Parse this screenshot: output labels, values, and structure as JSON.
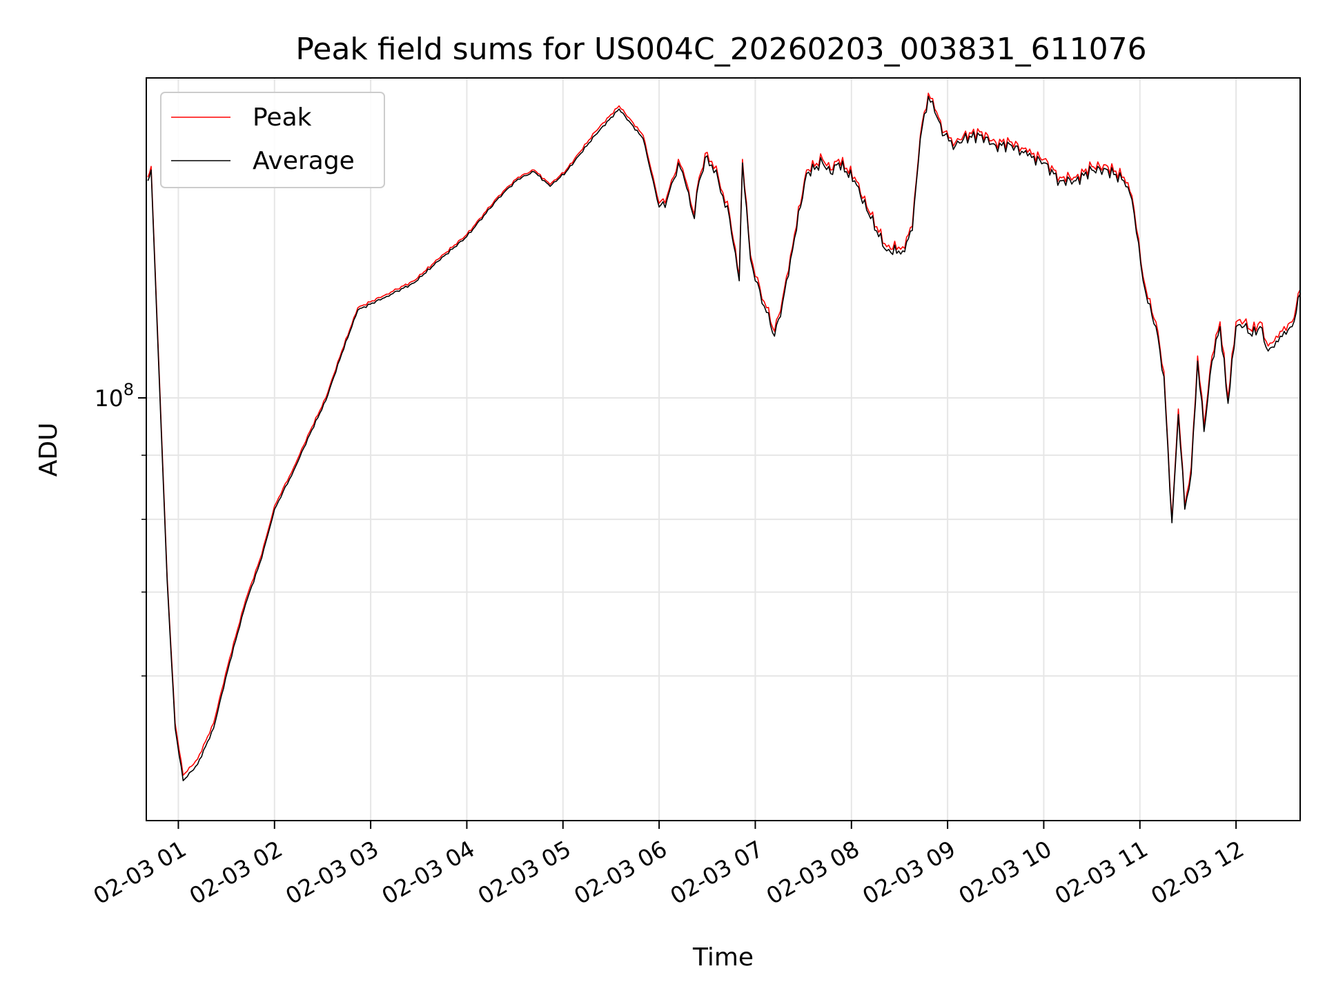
{
  "chart_data": {
    "type": "line",
    "title": "Peak field sums for US004C_20260203_003831_611076",
    "xlabel": "Time",
    "ylabel": "ADU",
    "x_axis_type": "time",
    "xlim": [
      "2026-02-03 00:40",
      "2026-02-03 12:40"
    ],
    "x_ticks": [
      "02-03 01",
      "02-03 02",
      "02-03 03",
      "02-03 04",
      "02-03 05",
      "02-03 06",
      "02-03 07",
      "02-03 08",
      "02-03 09",
      "02-03 10",
      "02-03 11",
      "02-03 12"
    ],
    "y_scale": "log",
    "ylim": [
      46000000,
      180000000
    ],
    "y_major_tick": {
      "value": 100000000,
      "base": "10",
      "exponent": "8"
    },
    "y_minor_ticks": [
      60000000,
      70000000,
      80000000,
      90000000
    ],
    "grid": true,
    "legend_position": "upper-left",
    "series": [
      {
        "name": "Peak",
        "color": "#ff0000",
        "x": [
          "2026-02-03 00:41",
          "2026-02-03 00:43",
          "2026-02-03 00:48",
          "2026-02-03 00:53",
          "2026-02-03 00:58",
          "2026-02-03 01:03",
          "2026-02-03 01:12",
          "2026-02-03 01:22",
          "2026-02-03 01:32",
          "2026-02-03 01:42",
          "2026-02-03 01:52",
          "2026-02-03 02:00",
          "2026-02-03 02:12",
          "2026-02-03 02:22",
          "2026-02-03 02:32",
          "2026-02-03 02:42",
          "2026-02-03 02:52",
          "2026-02-03 03:10",
          "2026-02-03 03:27",
          "2026-02-03 03:42",
          "2026-02-03 04:00",
          "2026-02-03 04:20",
          "2026-02-03 04:32",
          "2026-02-03 04:42",
          "2026-02-03 04:52",
          "2026-02-03 05:02",
          "2026-02-03 05:20",
          "2026-02-03 05:35",
          "2026-02-03 05:50",
          "2026-02-03 06:00",
          "2026-02-03 06:05",
          "2026-02-03 06:12",
          "2026-02-03 06:16",
          "2026-02-03 06:22",
          "2026-02-03 06:25",
          "2026-02-03 06:30",
          "2026-02-03 06:37",
          "2026-02-03 06:44",
          "2026-02-03 06:50",
          "2026-02-03 06:52",
          "2026-02-03 06:57",
          "2026-02-03 07:00",
          "2026-02-03 07:07",
          "2026-02-03 07:12",
          "2026-02-03 07:17",
          "2026-02-03 07:22",
          "2026-02-03 07:32",
          "2026-02-03 07:42",
          "2026-02-03 07:47",
          "2026-02-03 07:52",
          "2026-02-03 08:02",
          "2026-02-03 08:12",
          "2026-02-03 08:22",
          "2026-02-03 08:32",
          "2026-02-03 08:38",
          "2026-02-03 08:43",
          "2026-02-03 08:48",
          "2026-02-03 08:52",
          "2026-02-03 08:58",
          "2026-02-03 09:05",
          "2026-02-03 09:10",
          "2026-02-03 09:20",
          "2026-02-03 09:30",
          "2026-02-03 09:40",
          "2026-02-03 09:50",
          "2026-02-03 10:00",
          "2026-02-03 10:10",
          "2026-02-03 10:20",
          "2026-02-03 10:30",
          "2026-02-03 10:40",
          "2026-02-03 10:50",
          "2026-02-03 10:55",
          "2026-02-03 11:02",
          "2026-02-03 11:05",
          "2026-02-03 11:10",
          "2026-02-03 11:15",
          "2026-02-03 11:20",
          "2026-02-03 11:24",
          "2026-02-03 11:28",
          "2026-02-03 11:32",
          "2026-02-03 11:36",
          "2026-02-03 11:40",
          "2026-02-03 11:45",
          "2026-02-03 11:50",
          "2026-02-03 11:55",
          "2026-02-03 12:00",
          "2026-02-03 12:05",
          "2026-02-03 12:10",
          "2026-02-03 12:15",
          "2026-02-03 12:20",
          "2026-02-03 12:25",
          "2026-02-03 12:30",
          "2026-02-03 12:35",
          "2026-02-03 12:40"
        ],
        "y": [
          150000000,
          153000000,
          105000000,
          72000000,
          55000000,
          50000000,
          51500000,
          55000000,
          62000000,
          69000000,
          75000000,
          82000000,
          88000000,
          94000000,
          100000000,
          109000000,
          118000000,
          121000000,
          124000000,
          129000000,
          135000000,
          145000000,
          150000000,
          152000000,
          148000000,
          152000000,
          163000000,
          171000000,
          162000000,
          143000000,
          145000000,
          155000000,
          150000000,
          140000000,
          150000000,
          157000000,
          150000000,
          140000000,
          125000000,
          155000000,
          130000000,
          125000000,
          118000000,
          113000000,
          120000000,
          130000000,
          152000000,
          155000000,
          152000000,
          155000000,
          150000000,
          140000000,
          132000000,
          132000000,
          137000000,
          162000000,
          175000000,
          170000000,
          163000000,
          160000000,
          162000000,
          163000000,
          160000000,
          160000000,
          157000000,
          155000000,
          150000000,
          150000000,
          153000000,
          153000000,
          150000000,
          145000000,
          125000000,
          120000000,
          115000000,
          105000000,
          80000000,
          98000000,
          82000000,
          88000000,
          108000000,
          95000000,
          108000000,
          115000000,
          100000000,
          115000000,
          115000000,
          113000000,
          115000000,
          110000000,
          112000000,
          114000000,
          115000000,
          122000000
        ]
      },
      {
        "name": "Average",
        "color": "#000000",
        "x": [
          "2026-02-03 00:41",
          "2026-02-03 00:43",
          "2026-02-03 00:48",
          "2026-02-03 00:53",
          "2026-02-03 00:58",
          "2026-02-03 01:03",
          "2026-02-03 01:12",
          "2026-02-03 01:22",
          "2026-02-03 01:32",
          "2026-02-03 01:42",
          "2026-02-03 01:52",
          "2026-02-03 02:00",
          "2026-02-03 02:12",
          "2026-02-03 02:22",
          "2026-02-03 02:32",
          "2026-02-03 02:42",
          "2026-02-03 02:52",
          "2026-02-03 03:10",
          "2026-02-03 03:27",
          "2026-02-03 03:42",
          "2026-02-03 04:00",
          "2026-02-03 04:20",
          "2026-02-03 04:32",
          "2026-02-03 04:42",
          "2026-02-03 04:52",
          "2026-02-03 05:02",
          "2026-02-03 05:20",
          "2026-02-03 05:35",
          "2026-02-03 05:50",
          "2026-02-03 06:00",
          "2026-02-03 06:05",
          "2026-02-03 06:12",
          "2026-02-03 06:16",
          "2026-02-03 06:22",
          "2026-02-03 06:25",
          "2026-02-03 06:30",
          "2026-02-03 06:37",
          "2026-02-03 06:44",
          "2026-02-03 06:50",
          "2026-02-03 06:52",
          "2026-02-03 06:57",
          "2026-02-03 07:00",
          "2026-02-03 07:07",
          "2026-02-03 07:12",
          "2026-02-03 07:17",
          "2026-02-03 07:22",
          "2026-02-03 07:32",
          "2026-02-03 07:42",
          "2026-02-03 07:47",
          "2026-02-03 07:52",
          "2026-02-03 08:02",
          "2026-02-03 08:12",
          "2026-02-03 08:22",
          "2026-02-03 08:32",
          "2026-02-03 08:38",
          "2026-02-03 08:43",
          "2026-02-03 08:48",
          "2026-02-03 08:52",
          "2026-02-03 08:58",
          "2026-02-03 09:05",
          "2026-02-03 09:10",
          "2026-02-03 09:20",
          "2026-02-03 09:30",
          "2026-02-03 09:40",
          "2026-02-03 09:50",
          "2026-02-03 10:00",
          "2026-02-03 10:10",
          "2026-02-03 10:20",
          "2026-02-03 10:30",
          "2026-02-03 10:40",
          "2026-02-03 10:50",
          "2026-02-03 10:55",
          "2026-02-03 11:02",
          "2026-02-03 11:05",
          "2026-02-03 11:10",
          "2026-02-03 11:15",
          "2026-02-03 11:20",
          "2026-02-03 11:24",
          "2026-02-03 11:28",
          "2026-02-03 11:32",
          "2026-02-03 11:36",
          "2026-02-03 11:40",
          "2026-02-03 11:45",
          "2026-02-03 11:50",
          "2026-02-03 11:55",
          "2026-02-03 12:00",
          "2026-02-03 12:05",
          "2026-02-03 12:10",
          "2026-02-03 12:15",
          "2026-02-03 12:20",
          "2026-02-03 12:25",
          "2026-02-03 12:30",
          "2026-02-03 12:35",
          "2026-02-03 12:40"
        ],
        "y": [
          149000000,
          152000000,
          104000000,
          71500000,
          54500000,
          49500000,
          51000000,
          54500000,
          61500000,
          68500000,
          74500000,
          81500000,
          87500000,
          93500000,
          99500000,
          108500000,
          117500000,
          120500000,
          123500000,
          128500000,
          134500000,
          144500000,
          149500000,
          151500000,
          147500000,
          151500000,
          162000000,
          170000000,
          161000000,
          142000000,
          144000000,
          154000000,
          149000000,
          139000000,
          149000000,
          156000000,
          149000000,
          139000000,
          124000000,
          154000000,
          129000000,
          124000000,
          117000000,
          112000000,
          119000000,
          129000000,
          151000000,
          154000000,
          151000000,
          154000000,
          149000000,
          139000000,
          131000000,
          131000000,
          136000000,
          161000000,
          174000000,
          169000000,
          162000000,
          159000000,
          161000000,
          162000000,
          159000000,
          159000000,
          156000000,
          154000000,
          149000000,
          149000000,
          152000000,
          152000000,
          149000000,
          144000000,
          124000000,
          119000000,
          114000000,
          104000000,
          79500000,
          97000000,
          81500000,
          87000000,
          107000000,
          94000000,
          107000000,
          114000000,
          99000000,
          114000000,
          114000000,
          112000000,
          114000000,
          109000000,
          111000000,
          113000000,
          114000000,
          121000000
        ]
      }
    ]
  }
}
